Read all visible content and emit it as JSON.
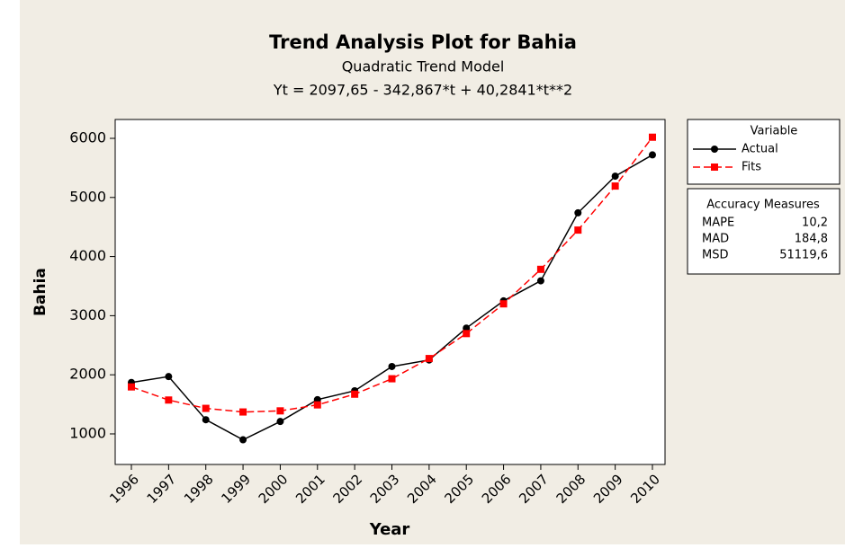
{
  "chart_data": {
    "type": "line",
    "title": "Trend Analysis Plot for Bahia",
    "subtitle": "Quadratic Trend Model",
    "equation": "Yt = 2097,65 - 342,867*t + 40,2841*t**2",
    "x_label": "Year",
    "y_label": "Bahia",
    "categories": [
      "1996",
      "1997",
      "1998",
      "1999",
      "2000",
      "2001",
      "2002",
      "2003",
      "2004",
      "2005",
      "2006",
      "2007",
      "2008",
      "2009",
      "2010"
    ],
    "series": [
      {
        "name": "Actual",
        "color": "#000000",
        "marker": "circle",
        "dashed": false,
        "values": [
          1870,
          1970,
          1240,
          900,
          1210,
          1580,
          1730,
          2140,
          2250,
          2790,
          3250,
          3590,
          4740,
          5360,
          5720
        ]
      },
      {
        "name": "Fits",
        "color": "#ff0000",
        "marker": "square",
        "dashed": true,
        "values": [
          1795,
          1573,
          1432,
          1371,
          1390,
          1491,
          1672,
          1933,
          2275,
          2697,
          3200,
          3784,
          4448,
          5193,
          6019
        ]
      }
    ],
    "ylim": [
      483,
      6319
    ],
    "yticks": [
      1000,
      2000,
      3000,
      4000,
      5000,
      6000
    ],
    "legend_title": "Variable",
    "accuracy": {
      "title": "Accuracy Measures",
      "rows": [
        [
          "MAPE",
          "10,2"
        ],
        [
          "MAD",
          "184,8"
        ],
        [
          "MSD",
          "51119,6"
        ]
      ]
    }
  }
}
